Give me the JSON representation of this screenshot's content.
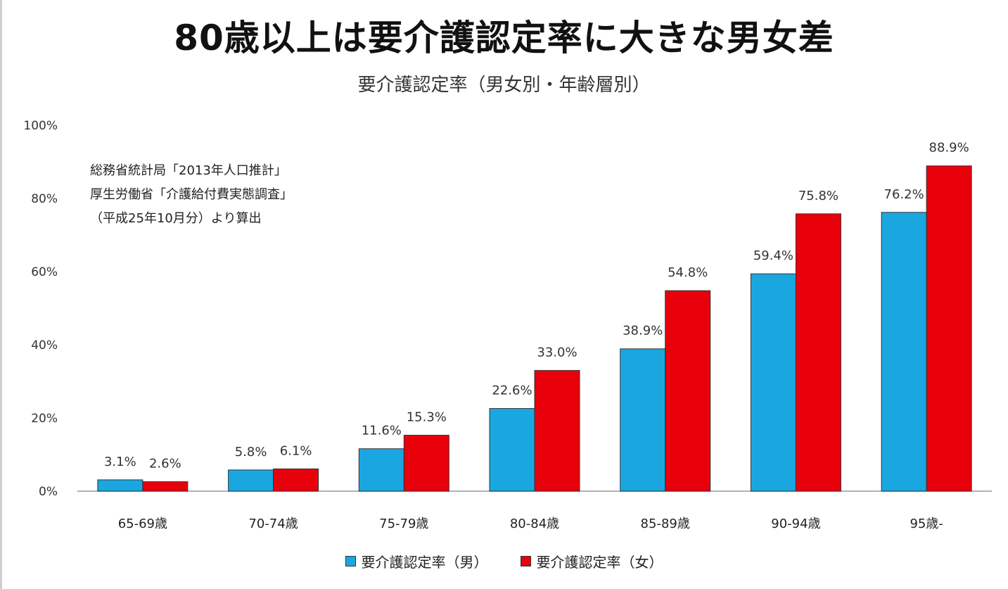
{
  "chart_data": {
    "type": "bar",
    "title": "80歳以上は要介護認定率に大きな男女差",
    "subtitle": "要介護認定率（男女別・年齢層別）",
    "categories": [
      "65-69歳",
      "70-74歳",
      "75-79歳",
      "80-84歳",
      "85-89歳",
      "90-94歳",
      "95歳-"
    ],
    "series": [
      {
        "name": "要介護認定率（男）",
        "color": "#1aa7e0",
        "values": [
          3.1,
          5.8,
          11.6,
          22.6,
          38.9,
          59.4,
          76.2
        ],
        "labels": [
          "3.1%",
          "5.8%",
          "11.6%",
          "22.6%",
          "38.9%",
          "59.4%",
          "76.2%"
        ]
      },
      {
        "name": "要介護認定率（女）",
        "color": "#e8000b",
        "values": [
          2.6,
          6.1,
          15.3,
          33.0,
          54.8,
          75.8,
          88.9
        ],
        "labels": [
          "2.6%",
          "6.1%",
          "15.3%",
          "33.0%",
          "54.8%",
          "75.8%",
          "88.9%"
        ]
      }
    ],
    "ylim": [
      0,
      100
    ],
    "yticks": [
      "0%",
      "20%",
      "40%",
      "60%",
      "80%",
      "100%"
    ],
    "ytick_values": [
      0,
      20,
      40,
      60,
      80,
      100
    ],
    "grid": false,
    "legend": "bottom",
    "xlabel": "",
    "ylabel": ""
  },
  "source_note": [
    "総務省統計局「2013年人口推計」",
    "厚生労働省「介護給付費実態調査」",
    "（平成25年10月分）より算出"
  ]
}
